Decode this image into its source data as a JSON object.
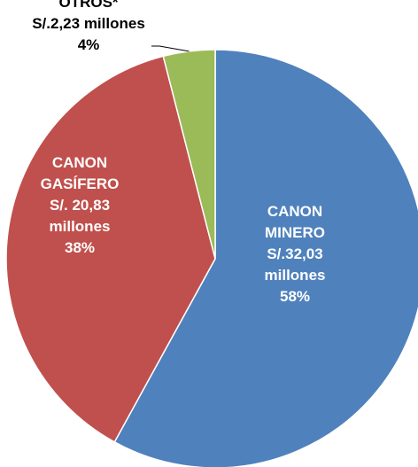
{
  "chart_data": {
    "type": "pie",
    "title": "",
    "legend": "none",
    "slices": [
      {
        "id": "canon-minero",
        "value": 58,
        "color": "#4f81bd",
        "label_lines": [
          "CANON",
          "MINERO",
          "S/.32,03",
          "millones",
          "58%"
        ]
      },
      {
        "id": "canon-gasifero",
        "value": 38,
        "color": "#c0504d",
        "label_lines": [
          "CANON",
          "GASÍFERO",
          "S/. 20,83",
          "millones",
          "38%"
        ]
      },
      {
        "id": "otros",
        "value": 4,
        "color": "#9bbb59",
        "label_lines": [
          "OTROS*",
          "S/.2,23 millones",
          "4%"
        ]
      }
    ]
  }
}
